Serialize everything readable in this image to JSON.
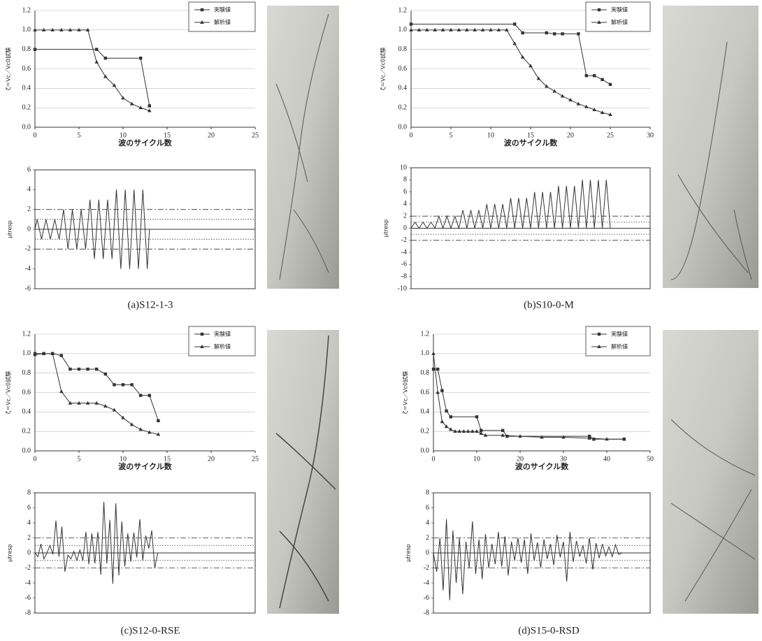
{
  "chart_data": [
    {
      "type": "line",
      "xlabel": "波のサイクル数",
      "ylabel": "ζ＝Vc／Vc0試験",
      "xlim": [
        0,
        25
      ],
      "xticks": [
        0,
        5,
        10,
        15,
        20,
        25
      ],
      "ylim": [
        0,
        1.2
      ],
      "yticks": [
        {
          "value": 0,
          "label": "0.0"
        },
        0.2,
        0.4,
        0.6,
        0.8,
        {
          "value": 1,
          "label": "1.0"
        },
        1.2
      ],
      "grid": true,
      "legend": "upper right",
      "series": [
        {
          "name": "実験値",
          "color": "#333333",
          "marker": "square",
          "x": [
            0,
            7,
            8,
            12,
            13
          ],
          "values": [
            0.8,
            0.8,
            0.71,
            0.71,
            0.22
          ]
        },
        {
          "name": "解析値",
          "color": "#333333",
          "marker": "triangle",
          "x": [
            0,
            1,
            2,
            3,
            4,
            5,
            6,
            7,
            8,
            9,
            10,
            11,
            12,
            13
          ],
          "values": [
            1.0,
            1.0,
            1.0,
            1.0,
            1.0,
            1.0,
            1.0,
            0.67,
            0.52,
            0.43,
            0.3,
            0.24,
            0.2,
            0.17
          ]
        }
      ]
    },
    {
      "type": "line",
      "ylabel": "μtresp",
      "caption": "(a)S12-1-3",
      "xlim": [
        0,
        25
      ],
      "ylim": [
        -6,
        6
      ],
      "yticks": [
        -6,
        -4,
        -2,
        0,
        2,
        4,
        6
      ],
      "reference_lines": [
        {
          "value": 2,
          "style": "dashdot"
        },
        {
          "value": 1,
          "style": "dotted"
        },
        {
          "value": -1,
          "style": "dotted"
        },
        {
          "value": -2,
          "style": "dashdot"
        }
      ],
      "series": [
        {
          "color": "#333333",
          "x": [
            0,
            0.25,
            0.75,
            1.25,
            1.75,
            2.25,
            2.75,
            3.25,
            3.75,
            4.25,
            4.75,
            5.25,
            5.75,
            6.25,
            6.75,
            7.25,
            7.75,
            8.25,
            8.75,
            9.25,
            9.75,
            10.25,
            10.75,
            11.25,
            11.75,
            12.25,
            12.75,
            13
          ],
          "values": [
            0,
            1,
            -1,
            1,
            -1,
            1,
            -1,
            2,
            -2,
            2,
            -2,
            2,
            -2,
            3,
            -3,
            3,
            -3,
            3,
            -3,
            4,
            -4,
            4,
            -4,
            4,
            -4,
            4,
            -4,
            0
          ]
        }
      ]
    },
    {
      "type": "line",
      "xlabel": "波のサイクル数",
      "ylabel": "ζ＝Vc／Vc0試験",
      "xlim": [
        0,
        30
      ],
      "xticks": [
        0,
        5,
        10,
        15,
        20,
        25,
        30
      ],
      "ylim": [
        0,
        1.2
      ],
      "yticks": [
        {
          "value": 0,
          "label": "0.0"
        },
        0.2,
        0.4,
        0.6,
        0.8,
        {
          "value": 1,
          "label": "1.0"
        },
        1.2
      ],
      "grid": true,
      "legend": "upper right",
      "series": [
        {
          "name": "実験値",
          "color": "#333333",
          "marker": "square",
          "x": [
            0,
            13,
            14,
            17,
            18,
            19,
            21,
            22,
            23,
            24,
            25
          ],
          "values": [
            1.06,
            1.06,
            0.97,
            0.97,
            0.96,
            0.96,
            0.96,
            0.53,
            0.53,
            0.49,
            0.44
          ]
        },
        {
          "name": "解析値",
          "color": "#333333",
          "marker": "triangle",
          "x": [
            0,
            1,
            2,
            3,
            4,
            5,
            6,
            7,
            8,
            9,
            10,
            11,
            12,
            13,
            14,
            15,
            16,
            17,
            18,
            19,
            20,
            21,
            22,
            23,
            24,
            25
          ],
          "values": [
            1.0,
            1.0,
            1.0,
            1.0,
            1.0,
            1.0,
            1.0,
            1.0,
            1.0,
            1.0,
            1.0,
            1.0,
            1.0,
            0.86,
            0.72,
            0.63,
            0.5,
            0.42,
            0.37,
            0.32,
            0.28,
            0.24,
            0.21,
            0.18,
            0.15,
            0.13
          ]
        }
      ]
    },
    {
      "type": "line",
      "ylabel": "μtresp",
      "caption": "(b)S10-0-M",
      "xlim": [
        0,
        30
      ],
      "ylim": [
        -10,
        10
      ],
      "yticks": [
        -10,
        -8,
        -6,
        -4,
        -2,
        0,
        2,
        4,
        6,
        8,
        10
      ],
      "reference_lines": [
        {
          "value": 2,
          "style": "dashdot"
        },
        {
          "value": 1,
          "style": "dotted"
        },
        {
          "value": -1,
          "style": "dotted"
        },
        {
          "value": -2,
          "style": "dashdot"
        }
      ],
      "series": [
        {
          "color": "#333333",
          "x": [
            0,
            0.5,
            1,
            1.5,
            2,
            2.5,
            3,
            3.5,
            4,
            4.5,
            5,
            5.5,
            6,
            6.5,
            7,
            7.5,
            8,
            8.5,
            9,
            9.5,
            10,
            10.5,
            11,
            11.5,
            12,
            12.5,
            13,
            13.5,
            14,
            14.5,
            15,
            15.5,
            16,
            16.5,
            17,
            17.5,
            18,
            18.5,
            19,
            19.5,
            20,
            20.5,
            21,
            21.5,
            22,
            22.5,
            23,
            23.5,
            24,
            24.5,
            25
          ],
          "values": [
            0,
            1,
            0,
            1,
            0,
            1,
            0,
            2,
            0,
            2,
            0,
            2,
            0,
            3,
            0,
            3,
            0,
            3,
            0,
            4,
            0,
            4,
            0,
            4,
            0,
            5,
            0,
            5,
            0,
            5,
            0,
            6,
            0,
            6,
            0,
            6,
            0,
            7,
            0,
            7,
            0,
            7,
            0,
            8,
            0,
            8,
            0,
            8,
            0,
            8,
            0
          ]
        }
      ]
    },
    {
      "type": "line",
      "xlabel": "波のサイクル数",
      "ylabel": "ζ＝Vc／Vc0試験",
      "xlim": [
        0,
        25
      ],
      "xticks": [
        0,
        5,
        10,
        15,
        20,
        25
      ],
      "ylim": [
        0,
        1.2
      ],
      "yticks": [
        {
          "value": 0,
          "label": "0.0"
        },
        0.2,
        0.4,
        0.6,
        0.8,
        {
          "value": 1,
          "label": "1.0"
        },
        1.2
      ],
      "grid": true,
      "legend": "upper right",
      "series": [
        {
          "name": "実験値",
          "color": "#333333",
          "marker": "square",
          "x": [
            0,
            1,
            2,
            3,
            4,
            5,
            6,
            7,
            8,
            9,
            10,
            11,
            12,
            13,
            14
          ],
          "values": [
            1.0,
            1.0,
            1.0,
            0.98,
            0.84,
            0.84,
            0.84,
            0.84,
            0.79,
            0.68,
            0.68,
            0.68,
            0.57,
            0.57,
            0.31
          ]
        },
        {
          "name": "解析値",
          "color": "#333333",
          "marker": "triangle",
          "x": [
            0,
            1,
            2,
            3,
            4,
            5,
            6,
            7,
            8,
            9,
            10,
            11,
            12,
            13,
            14
          ],
          "values": [
            0.99,
            1.0,
            1.0,
            0.61,
            0.49,
            0.49,
            0.49,
            0.49,
            0.46,
            0.42,
            0.34,
            0.27,
            0.22,
            0.19,
            0.17
          ]
        }
      ]
    },
    {
      "type": "line",
      "ylabel": "μtresp",
      "caption": "(c)S12-0-RSE",
      "xlim": [
        0,
        25
      ],
      "ylim": [
        -8,
        8
      ],
      "yticks": [
        -8,
        -6,
        -4,
        -2,
        0,
        2,
        4,
        6,
        8
      ],
      "reference_lines": [
        {
          "value": 2,
          "style": "dashdot"
        },
        {
          "value": 1,
          "style": "dotted"
        },
        {
          "value": -1,
          "style": "dotted"
        },
        {
          "value": -2,
          "style": "dashdot"
        }
      ],
      "series": [
        {
          "color": "#333333",
          "x": [
            0,
            0.34,
            0.68,
            1.02,
            1.36,
            1.7,
            2.04,
            2.38,
            2.72,
            3.06,
            3.4,
            3.74,
            4.08,
            4.42,
            4.76,
            5.1,
            5.44,
            5.78,
            6.12,
            6.46,
            6.8,
            7.14,
            7.48,
            7.82,
            8.16,
            8.5,
            8.84,
            9.18,
            9.52,
            9.86,
            10.2,
            10.54,
            10.88,
            11.22,
            11.56,
            11.9,
            12.24,
            12.58,
            12.92,
            13.26,
            13.6,
            13.94
          ],
          "values": [
            0,
            -0.5,
            1.2,
            -0.8,
            0,
            1,
            -0.2,
            4.3,
            -0.5,
            3.5,
            -2.5,
            -0.3,
            -0.8,
            0.2,
            -1,
            0.4,
            -1,
            2.8,
            -1.5,
            2.6,
            -1.4,
            2.8,
            -2.9,
            6.8,
            -1.4,
            4.4,
            -4.1,
            6.6,
            -3,
            4.2,
            -1.8,
            2.6,
            -1.2,
            2.7,
            -0.6,
            4.5,
            -1,
            2.3,
            0.6,
            3,
            -2,
            0
          ]
        }
      ]
    },
    {
      "type": "line",
      "xlabel": "波のサイクル数",
      "ylabel": "ζ＝Vc／Vc0試験",
      "xlim": [
        0,
        50
      ],
      "xticks": [
        0,
        10,
        20,
        30,
        40,
        50
      ],
      "ylim": [
        0,
        1.2
      ],
      "yticks": [
        {
          "value": 0,
          "label": "0.0"
        },
        0.2,
        0.4,
        0.6,
        0.8,
        {
          "value": 1,
          "label": "1.0"
        },
        1.2
      ],
      "grid": true,
      "legend": "upper right",
      "series": [
        {
          "name": "実験値",
          "color": "#333333",
          "marker": "square",
          "x": [
            0,
            1,
            2,
            3,
            4,
            10,
            11,
            16,
            17,
            36,
            37,
            44
          ],
          "values": [
            0.84,
            0.84,
            0.62,
            0.41,
            0.35,
            0.35,
            0.21,
            0.21,
            0.15,
            0.15,
            0.12,
            0.12
          ]
        },
        {
          "name": "解析値",
          "color": "#333333",
          "marker": "triangle",
          "x": [
            0,
            1,
            2,
            3,
            4,
            5,
            6,
            7,
            8,
            9,
            10,
            11,
            12,
            16,
            20,
            25,
            30,
            36,
            40,
            44
          ],
          "values": [
            1.0,
            0.6,
            0.3,
            0.25,
            0.22,
            0.2,
            0.2,
            0.2,
            0.2,
            0.2,
            0.2,
            0.18,
            0.16,
            0.16,
            0.15,
            0.14,
            0.14,
            0.13,
            0.12,
            0.12
          ]
        }
      ]
    },
    {
      "type": "line",
      "ylabel": "μtresp",
      "caption": "(d)S15-0-RSD",
      "xlim": [
        0,
        50
      ],
      "ylim": [
        -8,
        8
      ],
      "yticks": [
        -8,
        -6,
        -4,
        -2,
        0,
        2,
        4,
        6,
        8
      ],
      "reference_lines": [
        {
          "value": 2,
          "style": "dashdot"
        },
        {
          "value": 1,
          "style": "dotted"
        },
        {
          "value": -1,
          "style": "dotted"
        },
        {
          "value": -2,
          "style": "dashdot"
        }
      ],
      "series": [
        {
          "color": "#333333",
          "x": [
            0,
            0.75,
            1.5,
            2.25,
            3,
            3.75,
            4.5,
            5.25,
            6,
            6.75,
            7.5,
            8.25,
            9,
            9.75,
            10.5,
            11.25,
            12,
            12.75,
            13.5,
            14.25,
            15,
            15.75,
            16.5,
            17.25,
            18,
            18.75,
            19.5,
            20.25,
            21,
            21.75,
            22.5,
            23.25,
            24,
            24.75,
            25.5,
            26.25,
            27,
            27.75,
            28.5,
            29.25,
            30,
            30.75,
            31.5,
            32.25,
            33,
            33.75,
            34.5,
            35.25,
            36,
            36.75,
            37.5,
            38.25,
            39,
            39.75,
            40.5,
            41.25,
            42,
            42.75,
            43.5
          ],
          "values": [
            0,
            -2.5,
            2,
            -5,
            4.5,
            -6.3,
            3,
            -4,
            2,
            -5.5,
            1.5,
            -2,
            4.2,
            -2.8,
            1.8,
            -3.5,
            2.5,
            -2,
            1.2,
            -1.5,
            2.8,
            -1.8,
            2.2,
            -3,
            1.5,
            -1,
            2,
            -1.3,
            1.8,
            -2.8,
            2.6,
            -1,
            1.4,
            -2,
            1.8,
            -0.8,
            1.2,
            -1.6,
            2.4,
            -0.6,
            1.5,
            -3.8,
            2.8,
            -1.2,
            1.6,
            -0.5,
            1,
            -1.4,
            2,
            -2.2,
            1.3,
            -0.7,
            1.2,
            -0.4,
            0.8,
            -0.5,
            1.1,
            -0.2,
            0
          ]
        }
      ]
    }
  ]
}
